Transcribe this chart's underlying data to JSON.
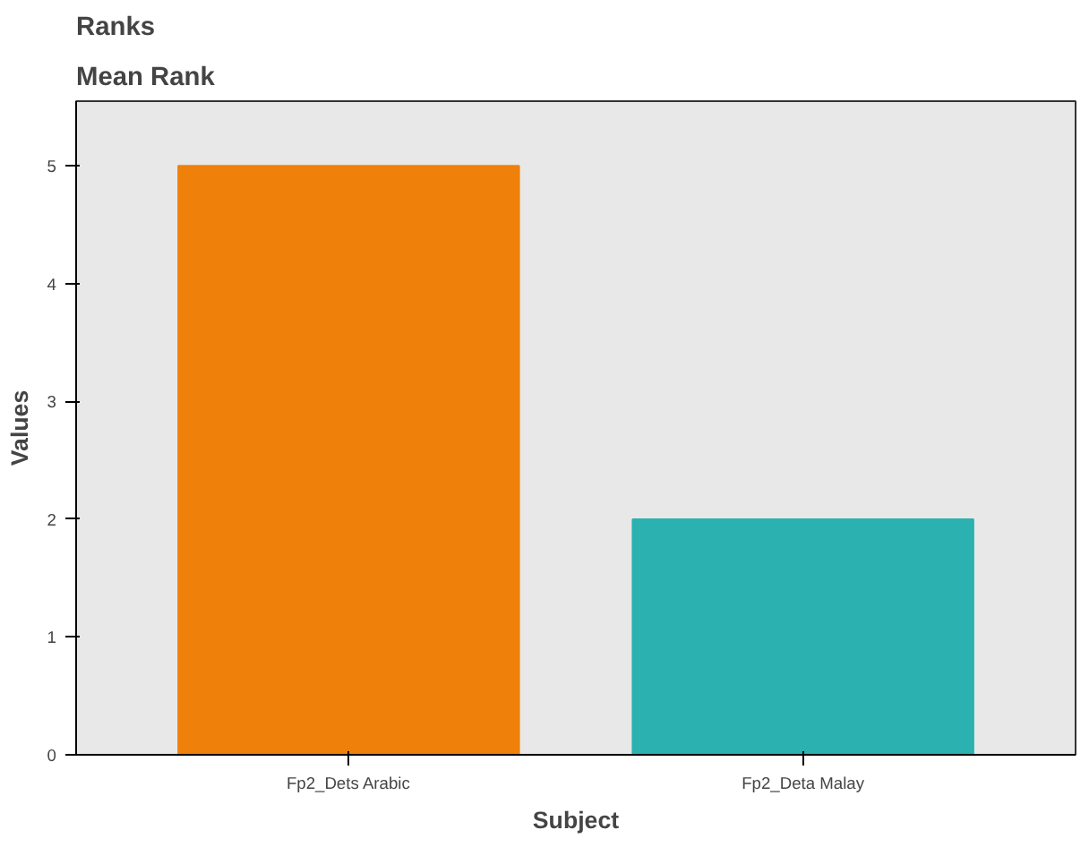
{
  "chart_data": {
    "type": "bar",
    "title": "Ranks",
    "subtitle": "Mean Rank",
    "xlabel": "Subject",
    "ylabel": "Values",
    "categories": [
      "Fp2_Dets Arabic",
      "Fp2_Deta Malay"
    ],
    "values": [
      5,
      2
    ],
    "colors": [
      "#ef800a",
      "#2ab1b0"
    ],
    "ylim": [
      0,
      5.55
    ],
    "yticks": [
      0,
      1,
      2,
      3,
      4,
      5
    ],
    "grid": false
  }
}
